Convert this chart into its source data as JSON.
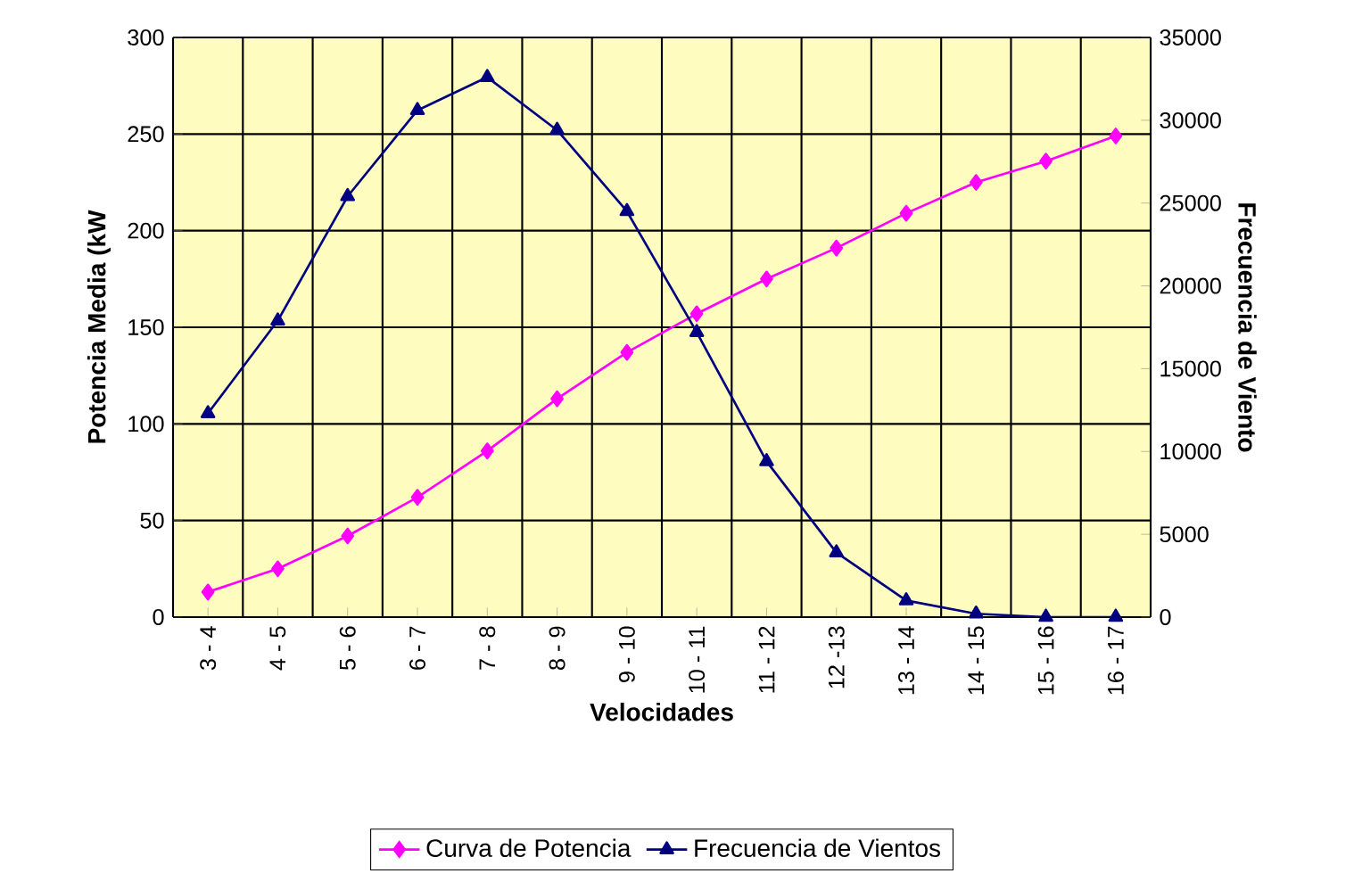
{
  "chart_data": {
    "type": "line",
    "xlabel": "Velocidades",
    "ylabel": "Potencia Media (kW",
    "y2label": "Frecuencia de Viento",
    "categories": [
      "3 - 4",
      "4 - 5",
      "5 - 6",
      "6 - 7",
      "7 - 8",
      "8 - 9",
      "9 - 10",
      "10 - 11",
      "11 - 12",
      "12 -13",
      "13 - 14",
      "14 - 15",
      "15 - 16",
      "16 - 17"
    ],
    "series": [
      {
        "name": "Curva de Potencia",
        "color": "#ff00ff",
        "marker": "diamond",
        "values": [
          13,
          25,
          42,
          62,
          86,
          113,
          137,
          157,
          175,
          191,
          209,
          225,
          236,
          249
        ]
      },
      {
        "name": "Frecuencia de Vientos",
        "color": "#000080",
        "marker": "triangle",
        "axis": "y2",
        "values": [
          12300,
          17900,
          25400,
          30600,
          32600,
          29400,
          24500,
          17200,
          9400,
          3900,
          1000,
          200,
          0,
          0
        ]
      }
    ],
    "ylim": [
      0,
      300
    ],
    "yticks": [
      0,
      50,
      100,
      150,
      200,
      250,
      300
    ],
    "y2lim": [
      0,
      35000
    ],
    "y2ticks": [
      0,
      5000,
      10000,
      15000,
      20000,
      25000,
      30000,
      35000
    ],
    "grid": true,
    "legend": "bottom"
  }
}
